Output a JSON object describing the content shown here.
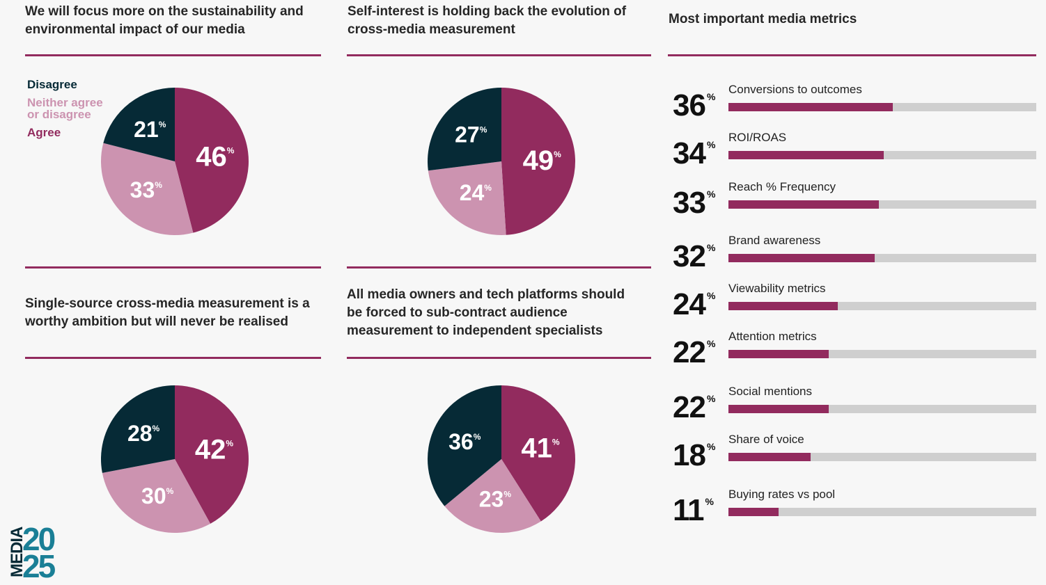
{
  "colors": {
    "agree": "#922b5e",
    "neither": "#cc93b0",
    "disagree": "#062a36",
    "track": "#cfcfcf",
    "logo": "#1a7f96"
  },
  "legend": {
    "disagree": "Disagree",
    "neither": "Neither agree or disagree",
    "neither_line1": "Neither agree",
    "neither_line2": "or disagree",
    "agree": "Agree"
  },
  "chart_data": [
    {
      "type": "pie",
      "title": "We will focus more on the sustainability and environmental impact of our media",
      "slices": [
        {
          "label": "Agree",
          "value": 46
        },
        {
          "label": "Neither agree or disagree",
          "value": 33
        },
        {
          "label": "Disagree",
          "value": 21
        }
      ]
    },
    {
      "type": "pie",
      "title": "Self-interest is holding back the evolution of cross-media measurement",
      "slices": [
        {
          "label": "Agree",
          "value": 49
        },
        {
          "label": "Neither agree or disagree",
          "value": 24
        },
        {
          "label": "Disagree",
          "value": 27
        }
      ]
    },
    {
      "type": "pie",
      "title": "Single-source cross-media measurement is a worthy ambition but will never be realised",
      "slices": [
        {
          "label": "Agree",
          "value": 42
        },
        {
          "label": "Neither agree or disagree",
          "value": 30
        },
        {
          "label": "Disagree",
          "value": 28
        }
      ]
    },
    {
      "type": "pie",
      "title": "All media owners and tech platforms should be forced to sub-contract audience measurement to independent specialists",
      "slices": [
        {
          "label": "Agree",
          "value": 41
        },
        {
          "label": "Neither agree or disagree",
          "value": 23
        },
        {
          "label": "Disagree",
          "value": 36
        }
      ]
    },
    {
      "type": "bar",
      "orientation": "horizontal",
      "title": "Most important media metrics",
      "unit": "%",
      "categories": [
        "Conversions to outcomes",
        "ROI/ROAS",
        "Reach % Frequency",
        "Brand awareness",
        "Viewability metrics",
        "Attention metrics",
        "Social mentions",
        "Share of voice",
        "Buying rates vs pool"
      ],
      "values": [
        36,
        34,
        33,
        32,
        24,
        22,
        22,
        18,
        11
      ]
    }
  ],
  "logo": {
    "text": "MEDIA 2025",
    "word": "MEDIA",
    "year_top": "20",
    "year_bottom": "25"
  }
}
